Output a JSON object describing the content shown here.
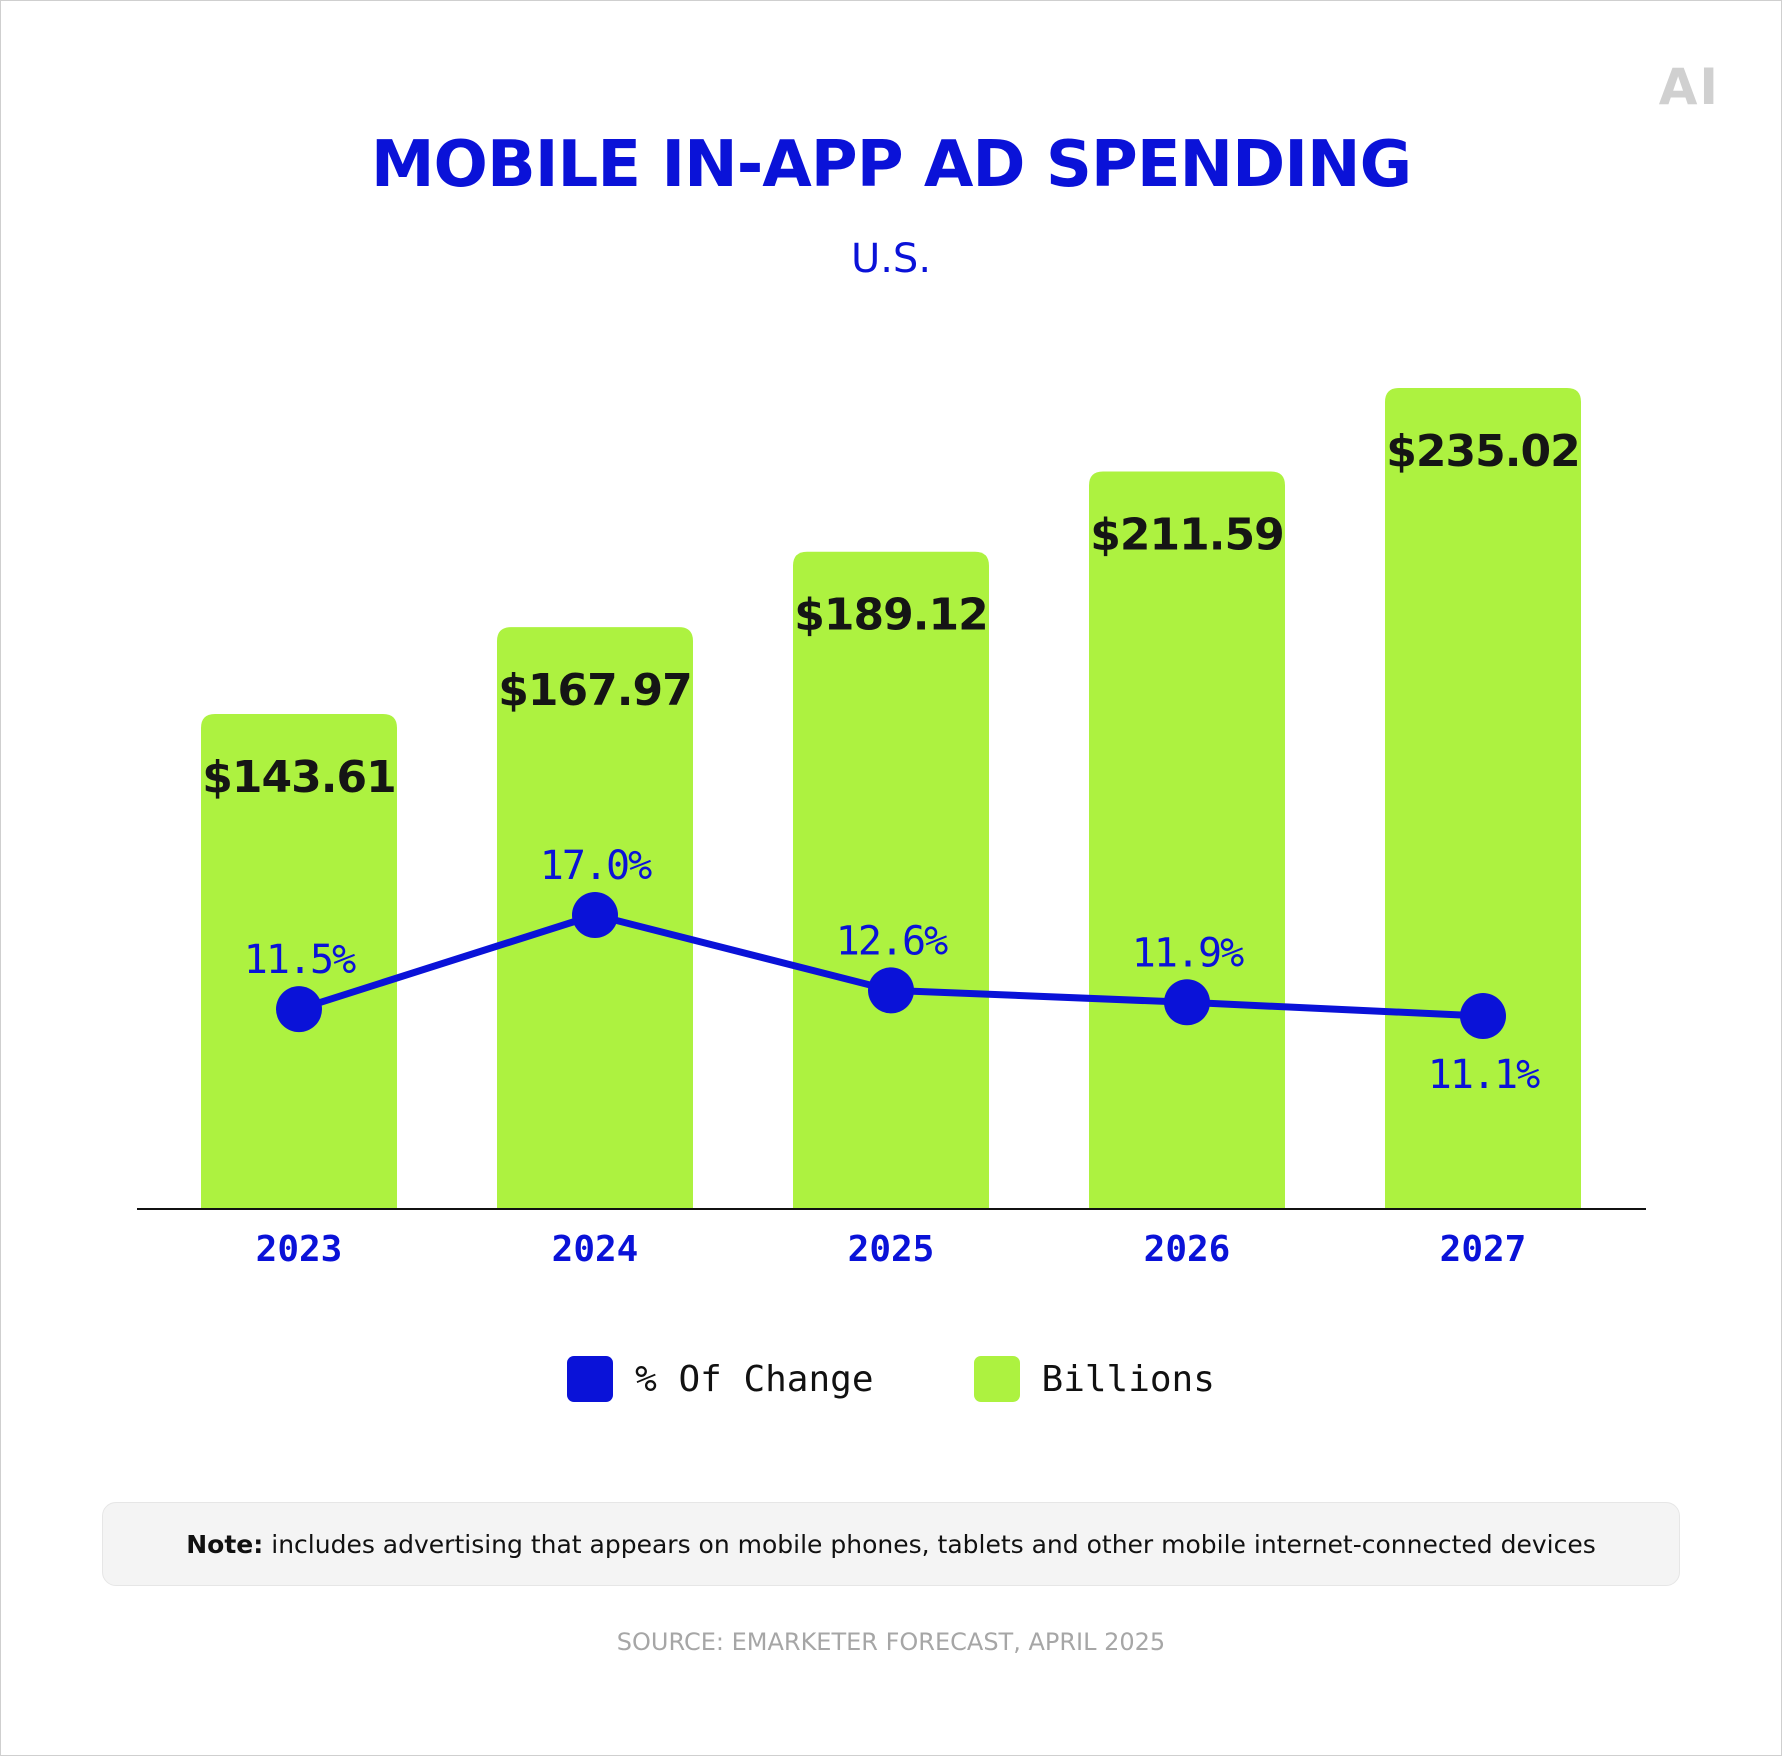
{
  "logo": "AI",
  "title": "MOBILE IN-APP AD SPENDING",
  "subtitle": "U.S.",
  "colors": {
    "bar": "#adf240",
    "line": "#0a12d8",
    "text_dark": "#151515",
    "axis": "#111111"
  },
  "chart_data": {
    "type": "bar",
    "categories": [
      "2023",
      "2024",
      "2025",
      "2026",
      "2027"
    ],
    "series": [
      {
        "name": "Billions",
        "type": "bar",
        "values": [
          143.61,
          167.97,
          189.12,
          211.59,
          235.02
        ],
        "labels": [
          "$143.61",
          "$167.97",
          "$189.12",
          "$211.59",
          "$235.02"
        ]
      },
      {
        "name": "% Of Change",
        "type": "line",
        "values": [
          11.5,
          17.0,
          12.6,
          11.9,
          11.1
        ],
        "labels": [
          "11.5%",
          "17.0%",
          "12.6%",
          "11.9%",
          "11.1%"
        ]
      }
    ],
    "legend_position": "bottom",
    "grid": false
  },
  "legend": [
    {
      "label": "% Of Change",
      "color": "#0a12d8"
    },
    {
      "label": "Billions",
      "color": "#adf240"
    }
  ],
  "note": {
    "bold": "Note:",
    "text": "includes advertising that appears on mobile phones, tablets and other mobile internet-connected devices"
  },
  "source": "SOURCE: EMARKETER FORECAST, APRIL 2025"
}
